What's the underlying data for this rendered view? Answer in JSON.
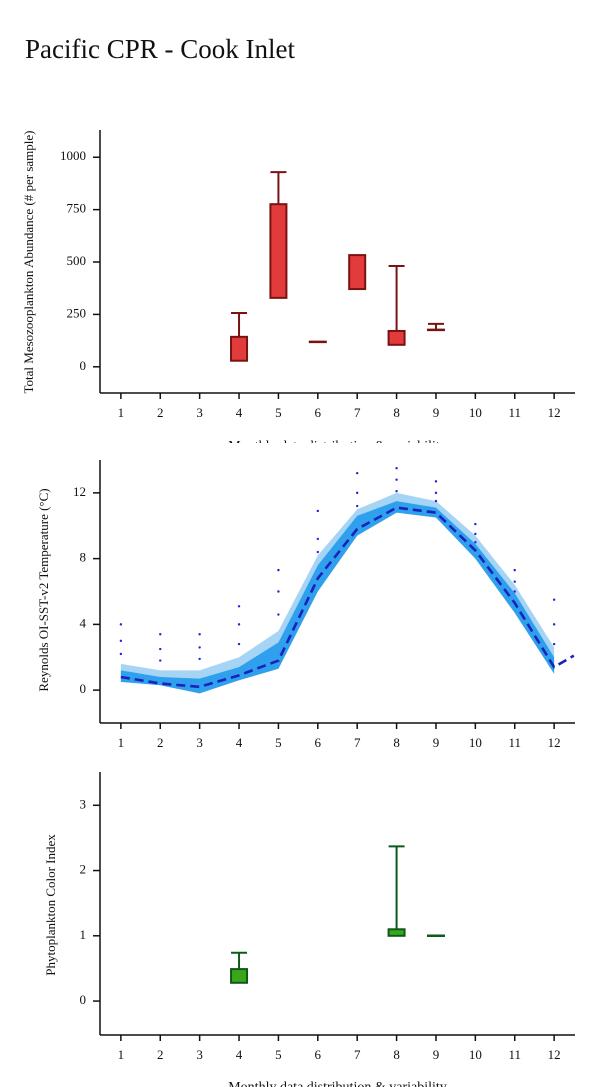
{
  "title": "Pacific CPR - Cook Inlet",
  "chart_data": [
    {
      "type": "box",
      "ylabel": "Total Mesozooplankton Abundance (# per sample)",
      "xlabel": "Monthly data distribution & variability",
      "x": [
        4,
        5,
        6,
        7,
        8,
        9
      ],
      "q1": [
        29,
        329,
        119,
        371,
        105,
        176
      ],
      "q3": [
        143,
        776,
        119,
        533,
        171,
        176
      ],
      "whisker_high": [
        257,
        929,
        null,
        null,
        481,
        205
      ],
      "fill": "#e23b3b",
      "stroke": "#7a1212",
      "xlim": [
        0.47,
        12.53
      ],
      "ylim": [
        -125,
        1130
      ],
      "xticks": [
        1,
        2,
        3,
        4,
        5,
        6,
        7,
        8,
        9,
        10,
        11,
        12
      ],
      "yticks": [
        0,
        250,
        500,
        750,
        1000
      ]
    },
    {
      "type": "line",
      "ylabel": "Reynolds OI-SST-v2 Temperature (°C)",
      "x": [
        1,
        2,
        3,
        4,
        5,
        6,
        7,
        8,
        9,
        10,
        11,
        12,
        12.5
      ],
      "bands": [
        {
          "color": "#a6d4f5",
          "low": [
            0.5,
            0.3,
            -0.2,
            0.6,
            1.3,
            6.0,
            9.4,
            10.8,
            10.5,
            8.0,
            4.7,
            1.0,
            null
          ],
          "high": [
            1.6,
            1.2,
            1.2,
            2.0,
            3.6,
            8.2,
            11.0,
            12.0,
            11.5,
            9.4,
            6.4,
            2.6,
            null
          ]
        },
        {
          "color": "#2fa0ee",
          "low": [
            0.5,
            0.3,
            -0.2,
            0.6,
            1.3,
            6.0,
            9.4,
            10.8,
            10.5,
            8.0,
            4.7,
            1.0,
            null
          ],
          "high": [
            1.2,
            0.8,
            0.7,
            1.4,
            2.9,
            7.6,
            10.6,
            11.5,
            11.1,
            8.9,
            5.9,
            2.0,
            null
          ]
        }
      ],
      "series": [
        {
          "color": "#1a22b8",
          "values": [
            0.8,
            0.4,
            0.2,
            0.9,
            1.8,
            6.8,
            9.8,
            11.1,
            10.8,
            8.5,
            5.3,
            1.4,
            2.1
          ]
        }
      ],
      "points": {
        "color": "#2222dd",
        "x": [
          1,
          1,
          1,
          2,
          2,
          2,
          3,
          3,
          3,
          4,
          4,
          4,
          5,
          5,
          5,
          6,
          6,
          6,
          7,
          7,
          7,
          8,
          8,
          8,
          9,
          9,
          9,
          10,
          10,
          10,
          11,
          11,
          11,
          12,
          12,
          12
        ],
        "y": [
          4.0,
          3.0,
          2.2,
          3.4,
          2.5,
          1.8,
          3.4,
          2.6,
          1.9,
          5.1,
          4.0,
          2.8,
          7.3,
          6.0,
          4.6,
          10.9,
          9.2,
          8.4,
          13.2,
          12.0,
          11.2,
          13.5,
          12.8,
          12.1,
          12.7,
          12.0,
          11.5,
          10.1,
          9.5,
          9.0,
          7.3,
          6.6,
          6.0,
          5.5,
          4.0,
          2.8
        ]
      },
      "xlim": [
        0.47,
        12.53
      ],
      "ylim": [
        -2,
        14
      ],
      "xticks": [
        1,
        2,
        3,
        4,
        5,
        6,
        7,
        8,
        9,
        10,
        11,
        12
      ],
      "yticks": [
        0,
        4,
        8,
        12
      ]
    },
    {
      "type": "box",
      "ylabel": "Phytoplankton Color Index",
      "xlabel": "Monthly data distribution & variability",
      "x": [
        4,
        8,
        9
      ],
      "q1": [
        0.28,
        1.0,
        1.0
      ],
      "q3": [
        0.49,
        1.1,
        1.0
      ],
      "whisker_high": [
        0.74,
        2.37,
        null
      ],
      "fill": "#3aa61a",
      "stroke": "#0e5a1e",
      "xlim": [
        0.47,
        12.53
      ],
      "ylim": [
        -0.52,
        3.51
      ],
      "xticks": [
        1,
        2,
        3,
        4,
        5,
        6,
        7,
        8,
        9,
        10,
        11,
        12
      ],
      "yticks": [
        0,
        1,
        2,
        3
      ]
    }
  ]
}
